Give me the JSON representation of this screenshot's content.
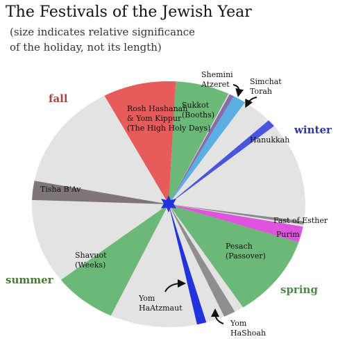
{
  "title": "The Festivals of the Jewish Year",
  "subtitle": [
    "(size indicates relative significance",
    "of the holiday, not its length)"
  ],
  "seasons": {
    "fall": "fall",
    "winter": "winter",
    "spring": "spring",
    "summer": "summer"
  },
  "holidays": [
    {
      "label": [
        "Rosh Hashanah",
        "& Yom Kippur",
        "(The High Holy Days)"
      ]
    },
    {
      "label": [
        "Sukkot",
        "(Booths)"
      ]
    },
    {
      "label": [
        "Shemini",
        "Atzeret"
      ]
    },
    {
      "label": [
        "Simchat",
        "Torah"
      ]
    },
    {
      "label": [
        "Hanukkah"
      ]
    },
    {
      "label": [
        "Fast of Esther"
      ]
    },
    {
      "label": [
        "Purim"
      ]
    },
    {
      "label": [
        "Pesach",
        "(Passover)"
      ]
    },
    {
      "label": [
        "Yom",
        "HaShoah"
      ]
    },
    {
      "label": [
        "Yom",
        "HaAtzmaut"
      ]
    },
    {
      "label": [
        "Shavuot",
        "(Weeks)"
      ]
    },
    {
      "label": [
        "Tisha B'Av"
      ]
    }
  ]
}
